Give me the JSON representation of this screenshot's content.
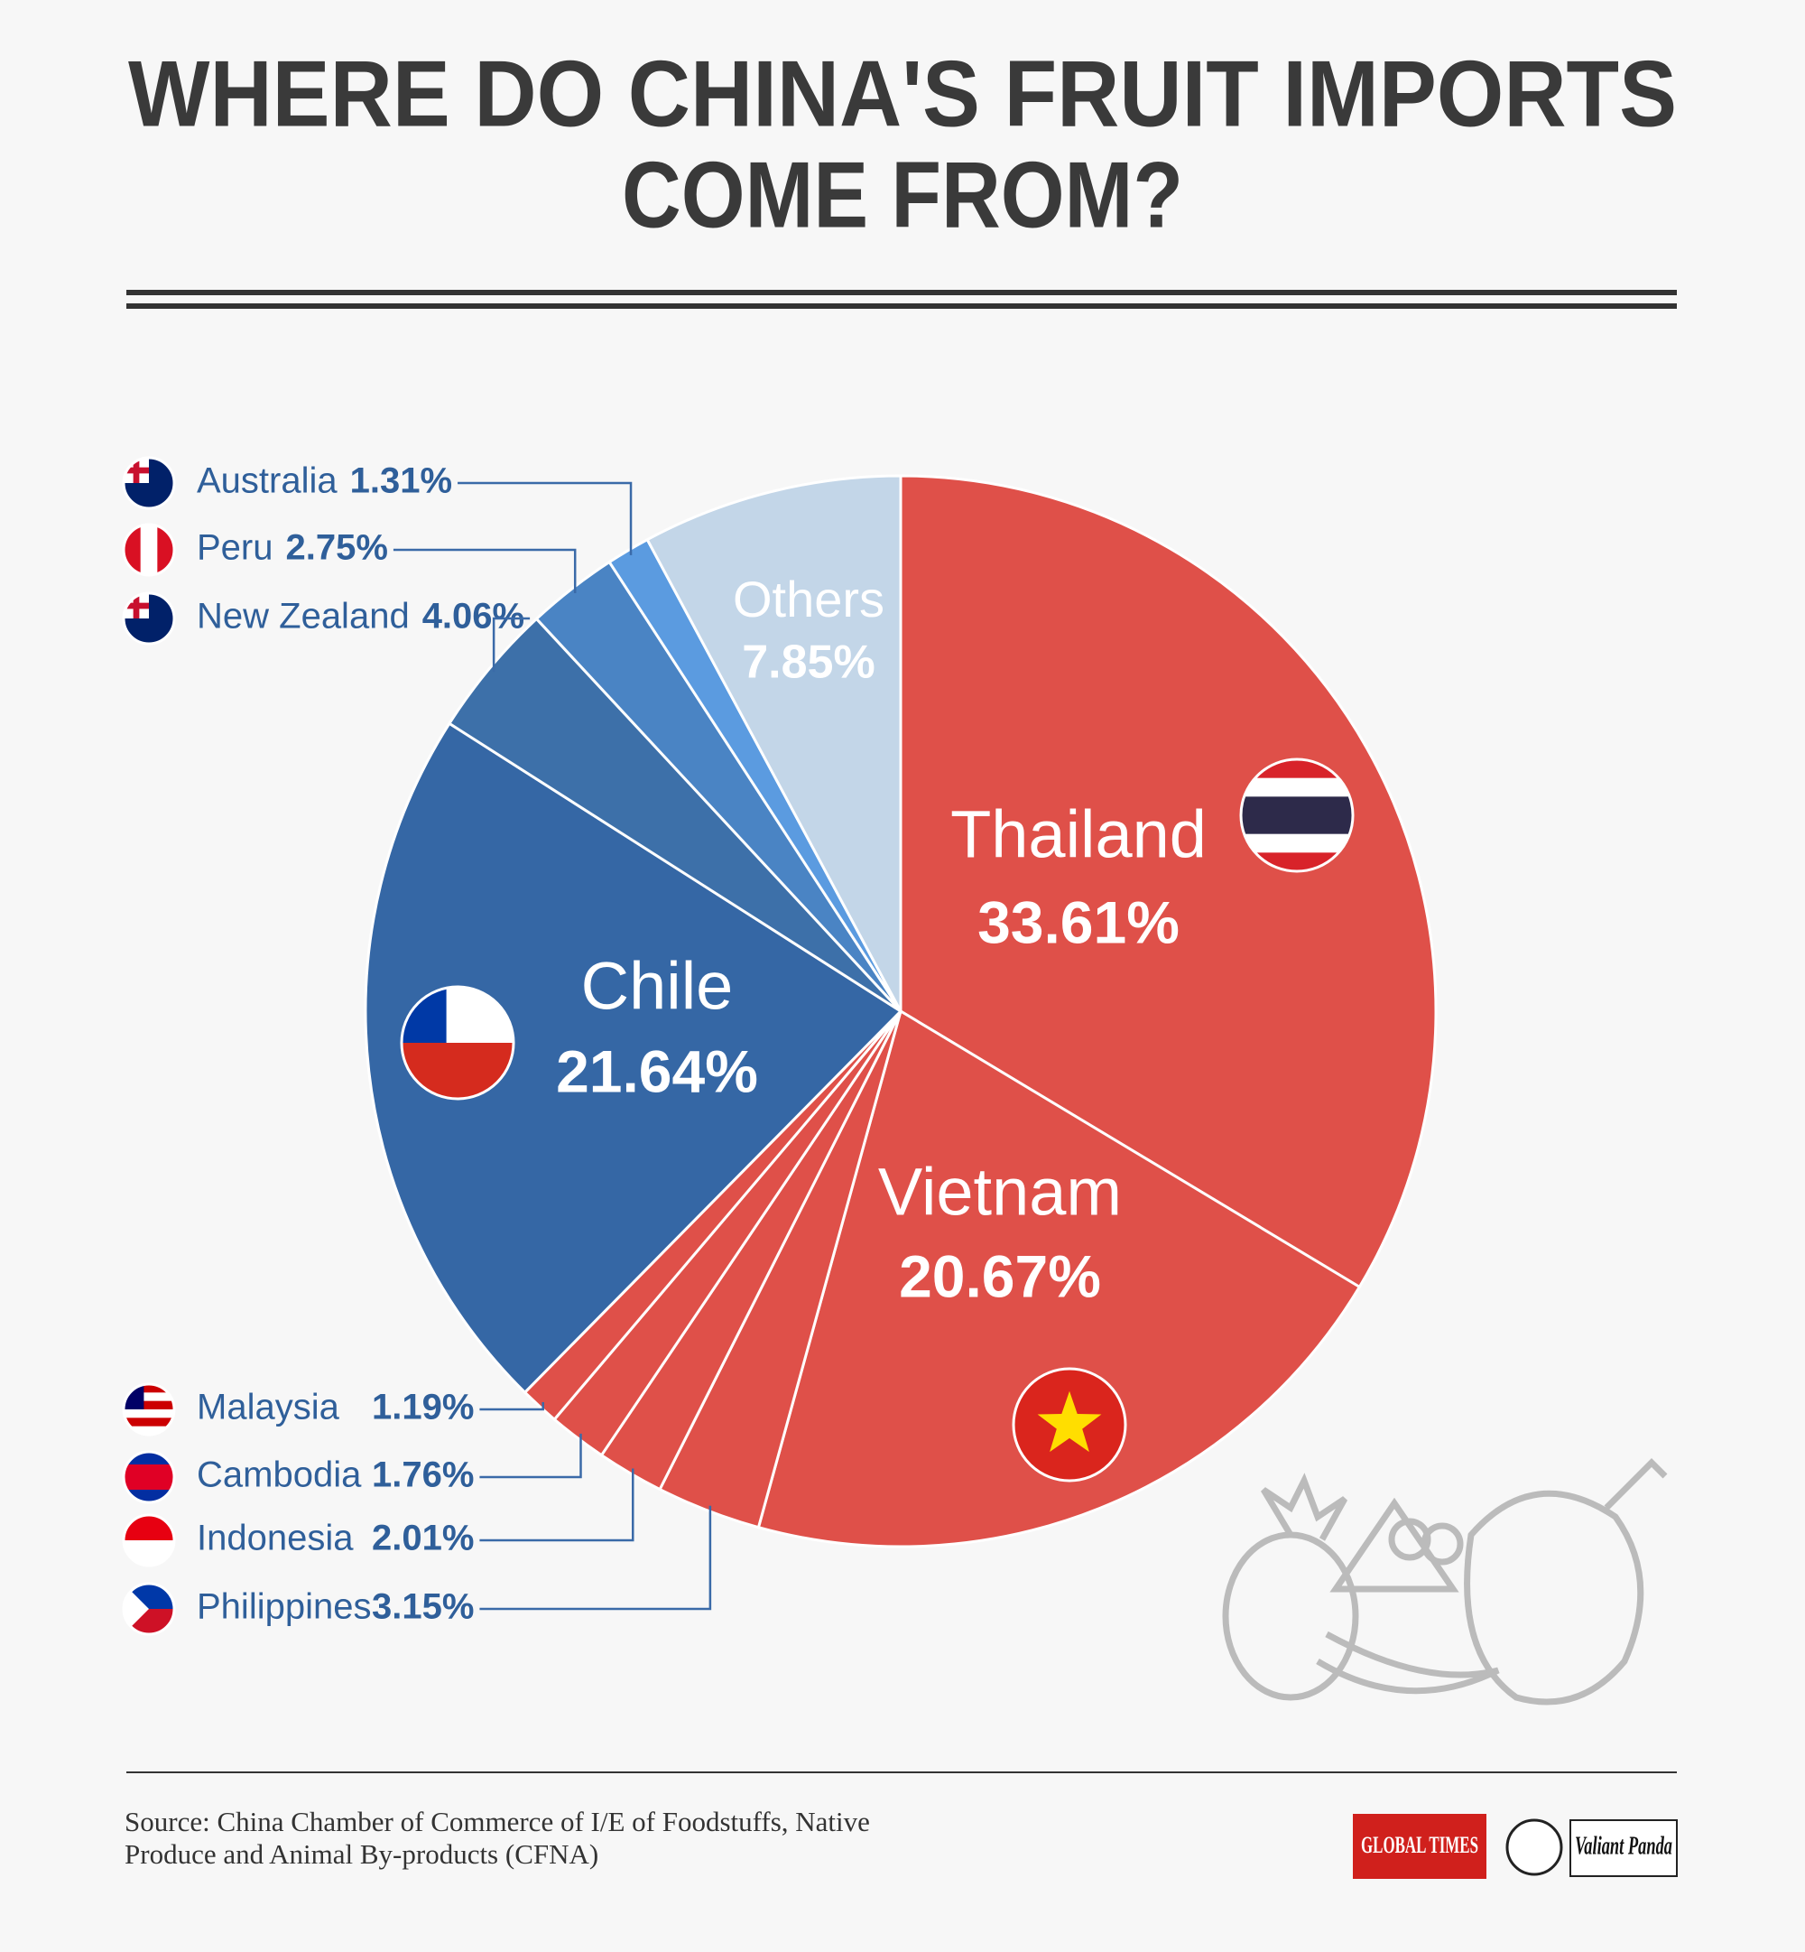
{
  "chart_data": {
    "type": "pie",
    "title": [
      "WHERE DO CHINA'S FRUIT IMPORTS",
      "COME FROM?"
    ],
    "categories": [
      "Thailand",
      "Vietnam",
      "Philippines",
      "Indonesia",
      "Cambodia",
      "Malaysia",
      "Chile",
      "New Zealand",
      "Peru",
      "Australia",
      "Others"
    ],
    "values": [
      33.61,
      20.67,
      3.15,
      2.01,
      1.76,
      1.19,
      21.64,
      4.06,
      2.75,
      1.31,
      7.85
    ],
    "value_labels": [
      "33.61%",
      "20.67%",
      "3.15%",
      "2.01%",
      "1.76%",
      "1.19%",
      "21.64%",
      "4.06%",
      "2.75%",
      "1.31%",
      "7.85%"
    ],
    "colors": [
      "#df5049",
      "#df5049",
      "#df5049",
      "#df5049",
      "#df5049",
      "#df5049",
      "#3567a5",
      "#3d70a9",
      "#4a84c4",
      "#5b9be0",
      "#c3d6e8"
    ],
    "source": "Source: China Chamber of Commerce of I/E of Foodstuffs, Native Produce and Animal By-products (CFNA)",
    "logos": [
      "GLOBAL TIMES",
      "Valiant Panda"
    ]
  }
}
